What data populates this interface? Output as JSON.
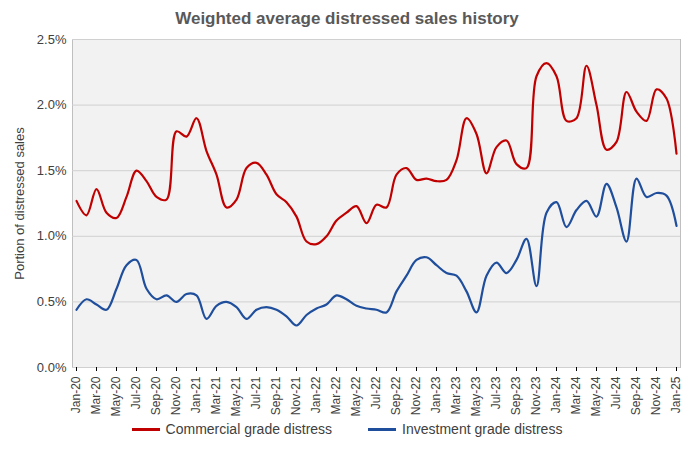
{
  "chart_data": {
    "type": "line",
    "title": "Weighted average distressed sales history",
    "y_label": "Portion of distressed sales",
    "categories": [
      "Jan-20",
      null,
      "Mar-20",
      null,
      "May-20",
      null,
      "Jul-20",
      null,
      "Sep-20",
      null,
      "Nov-20",
      null,
      "Jan-21",
      null,
      "Mar-21",
      null,
      "May-21",
      null,
      "Jul-21",
      null,
      "Sep-21",
      null,
      "Nov-21",
      null,
      "Jan-22",
      null,
      "Mar-22",
      null,
      "May-22",
      null,
      "Jul-22",
      null,
      "Sep-22",
      null,
      "Nov-22",
      null,
      "Jan-23",
      null,
      "Mar-23",
      null,
      "May-23",
      null,
      "Jul-23",
      null,
      "Sep-23",
      null,
      "Nov-23",
      null,
      "Jan-24",
      null,
      "Mar-24",
      null,
      "May-24",
      null,
      "Jul-24",
      null,
      "Sep-24",
      null,
      "Nov-24",
      null,
      "Jan-25"
    ],
    "series": [
      {
        "name": "Commercial grade distress",
        "color": "#c00000",
        "values": [
          1.27,
          1.16,
          1.36,
          1.18,
          1.14,
          1.3,
          1.5,
          1.42,
          1.3,
          1.28,
          1.8,
          1.76,
          1.9,
          1.65,
          1.47,
          1.22,
          1.28,
          1.52,
          1.56,
          1.47,
          1.32,
          1.26,
          1.15,
          0.96,
          0.94,
          1.0,
          1.12,
          1.18,
          1.23,
          1.1,
          1.24,
          1.22,
          1.47,
          1.52,
          1.43,
          1.44,
          1.42,
          1.43,
          1.58,
          1.9,
          1.78,
          1.48,
          1.68,
          1.73,
          1.55,
          1.52,
          2.22,
          2.32,
          2.22,
          1.88,
          1.9,
          2.3,
          2.0,
          1.66,
          1.72,
          2.1,
          1.95,
          1.88,
          2.12,
          2.05,
          1.63
        ]
      },
      {
        "name": "Investment grade distress",
        "color": "#1f4e9c",
        "values": [
          0.44,
          0.52,
          0.48,
          0.44,
          0.6,
          0.78,
          0.82,
          0.6,
          0.52,
          0.55,
          0.5,
          0.56,
          0.55,
          0.37,
          0.47,
          0.5,
          0.46,
          0.37,
          0.44,
          0.46,
          0.44,
          0.39,
          0.32,
          0.4,
          0.45,
          0.48,
          0.55,
          0.52,
          0.47,
          0.45,
          0.44,
          0.42,
          0.58,
          0.7,
          0.82,
          0.84,
          0.78,
          0.72,
          0.7,
          0.58,
          0.42,
          0.7,
          0.8,
          0.72,
          0.82,
          0.98,
          0.62,
          1.18,
          1.26,
          1.07,
          1.2,
          1.27,
          1.15,
          1.4,
          1.22,
          0.96,
          1.44,
          1.3,
          1.33,
          1.31,
          1.08
        ]
      }
    ],
    "ylim": [
      0,
      2.5
    ],
    "yticks": [
      {
        "value": 0,
        "label": "0.0%"
      },
      {
        "value": 0.5,
        "label": "0.5%"
      },
      {
        "value": 1,
        "label": "1.0%"
      },
      {
        "value": 1.5,
        "label": "1.5%"
      },
      {
        "value": 2,
        "label": "2.0%"
      },
      {
        "value": 2.5,
        "label": "2.5%"
      }
    ],
    "grid": true,
    "legend": "bottom"
  }
}
